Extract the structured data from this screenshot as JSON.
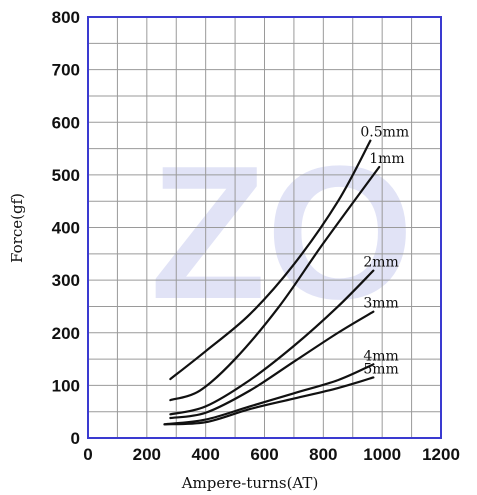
{
  "chart_data": {
    "type": "line",
    "xlabel": "Ampere-turns(AT)",
    "ylabel": "Force(gf)",
    "xlim": [
      0,
      1200
    ],
    "ylim": [
      0,
      800
    ],
    "x_ticks": [
      "0",
      "200",
      "400",
      "600",
      "800",
      "1000",
      "1200"
    ],
    "y_ticks": [
      "0",
      "100",
      "200",
      "300",
      "400",
      "500",
      "600",
      "700",
      "800"
    ],
    "grid": true,
    "watermark": "ZO",
    "series": [
      {
        "name": "0.5mm",
        "x": [
          280,
          400,
          550,
          700,
          850,
          960
        ],
        "y": [
          112,
          165,
          235,
          330,
          450,
          565
        ]
      },
      {
        "name": "1mm",
        "x": [
          280,
          380,
          500,
          650,
          800,
          990
        ],
        "y": [
          72,
          90,
          150,
          250,
          370,
          515
        ]
      },
      {
        "name": "2mm",
        "x": [
          280,
          400,
          550,
          700,
          850,
          970
        ],
        "y": [
          45,
          60,
          110,
          175,
          250,
          318
        ]
      },
      {
        "name": "3mm",
        "x": [
          280,
          400,
          550,
          700,
          850,
          970
        ],
        "y": [
          38,
          48,
          90,
          145,
          200,
          240
        ]
      },
      {
        "name": "4mm",
        "x": [
          260,
          400,
          550,
          700,
          850,
          970
        ],
        "y": [
          26,
          35,
          60,
          85,
          110,
          140
        ]
      },
      {
        "name": "5mm",
        "x": [
          260,
          400,
          550,
          700,
          850,
          970
        ],
        "y": [
          26,
          30,
          55,
          75,
          95,
          115
        ]
      }
    ]
  }
}
